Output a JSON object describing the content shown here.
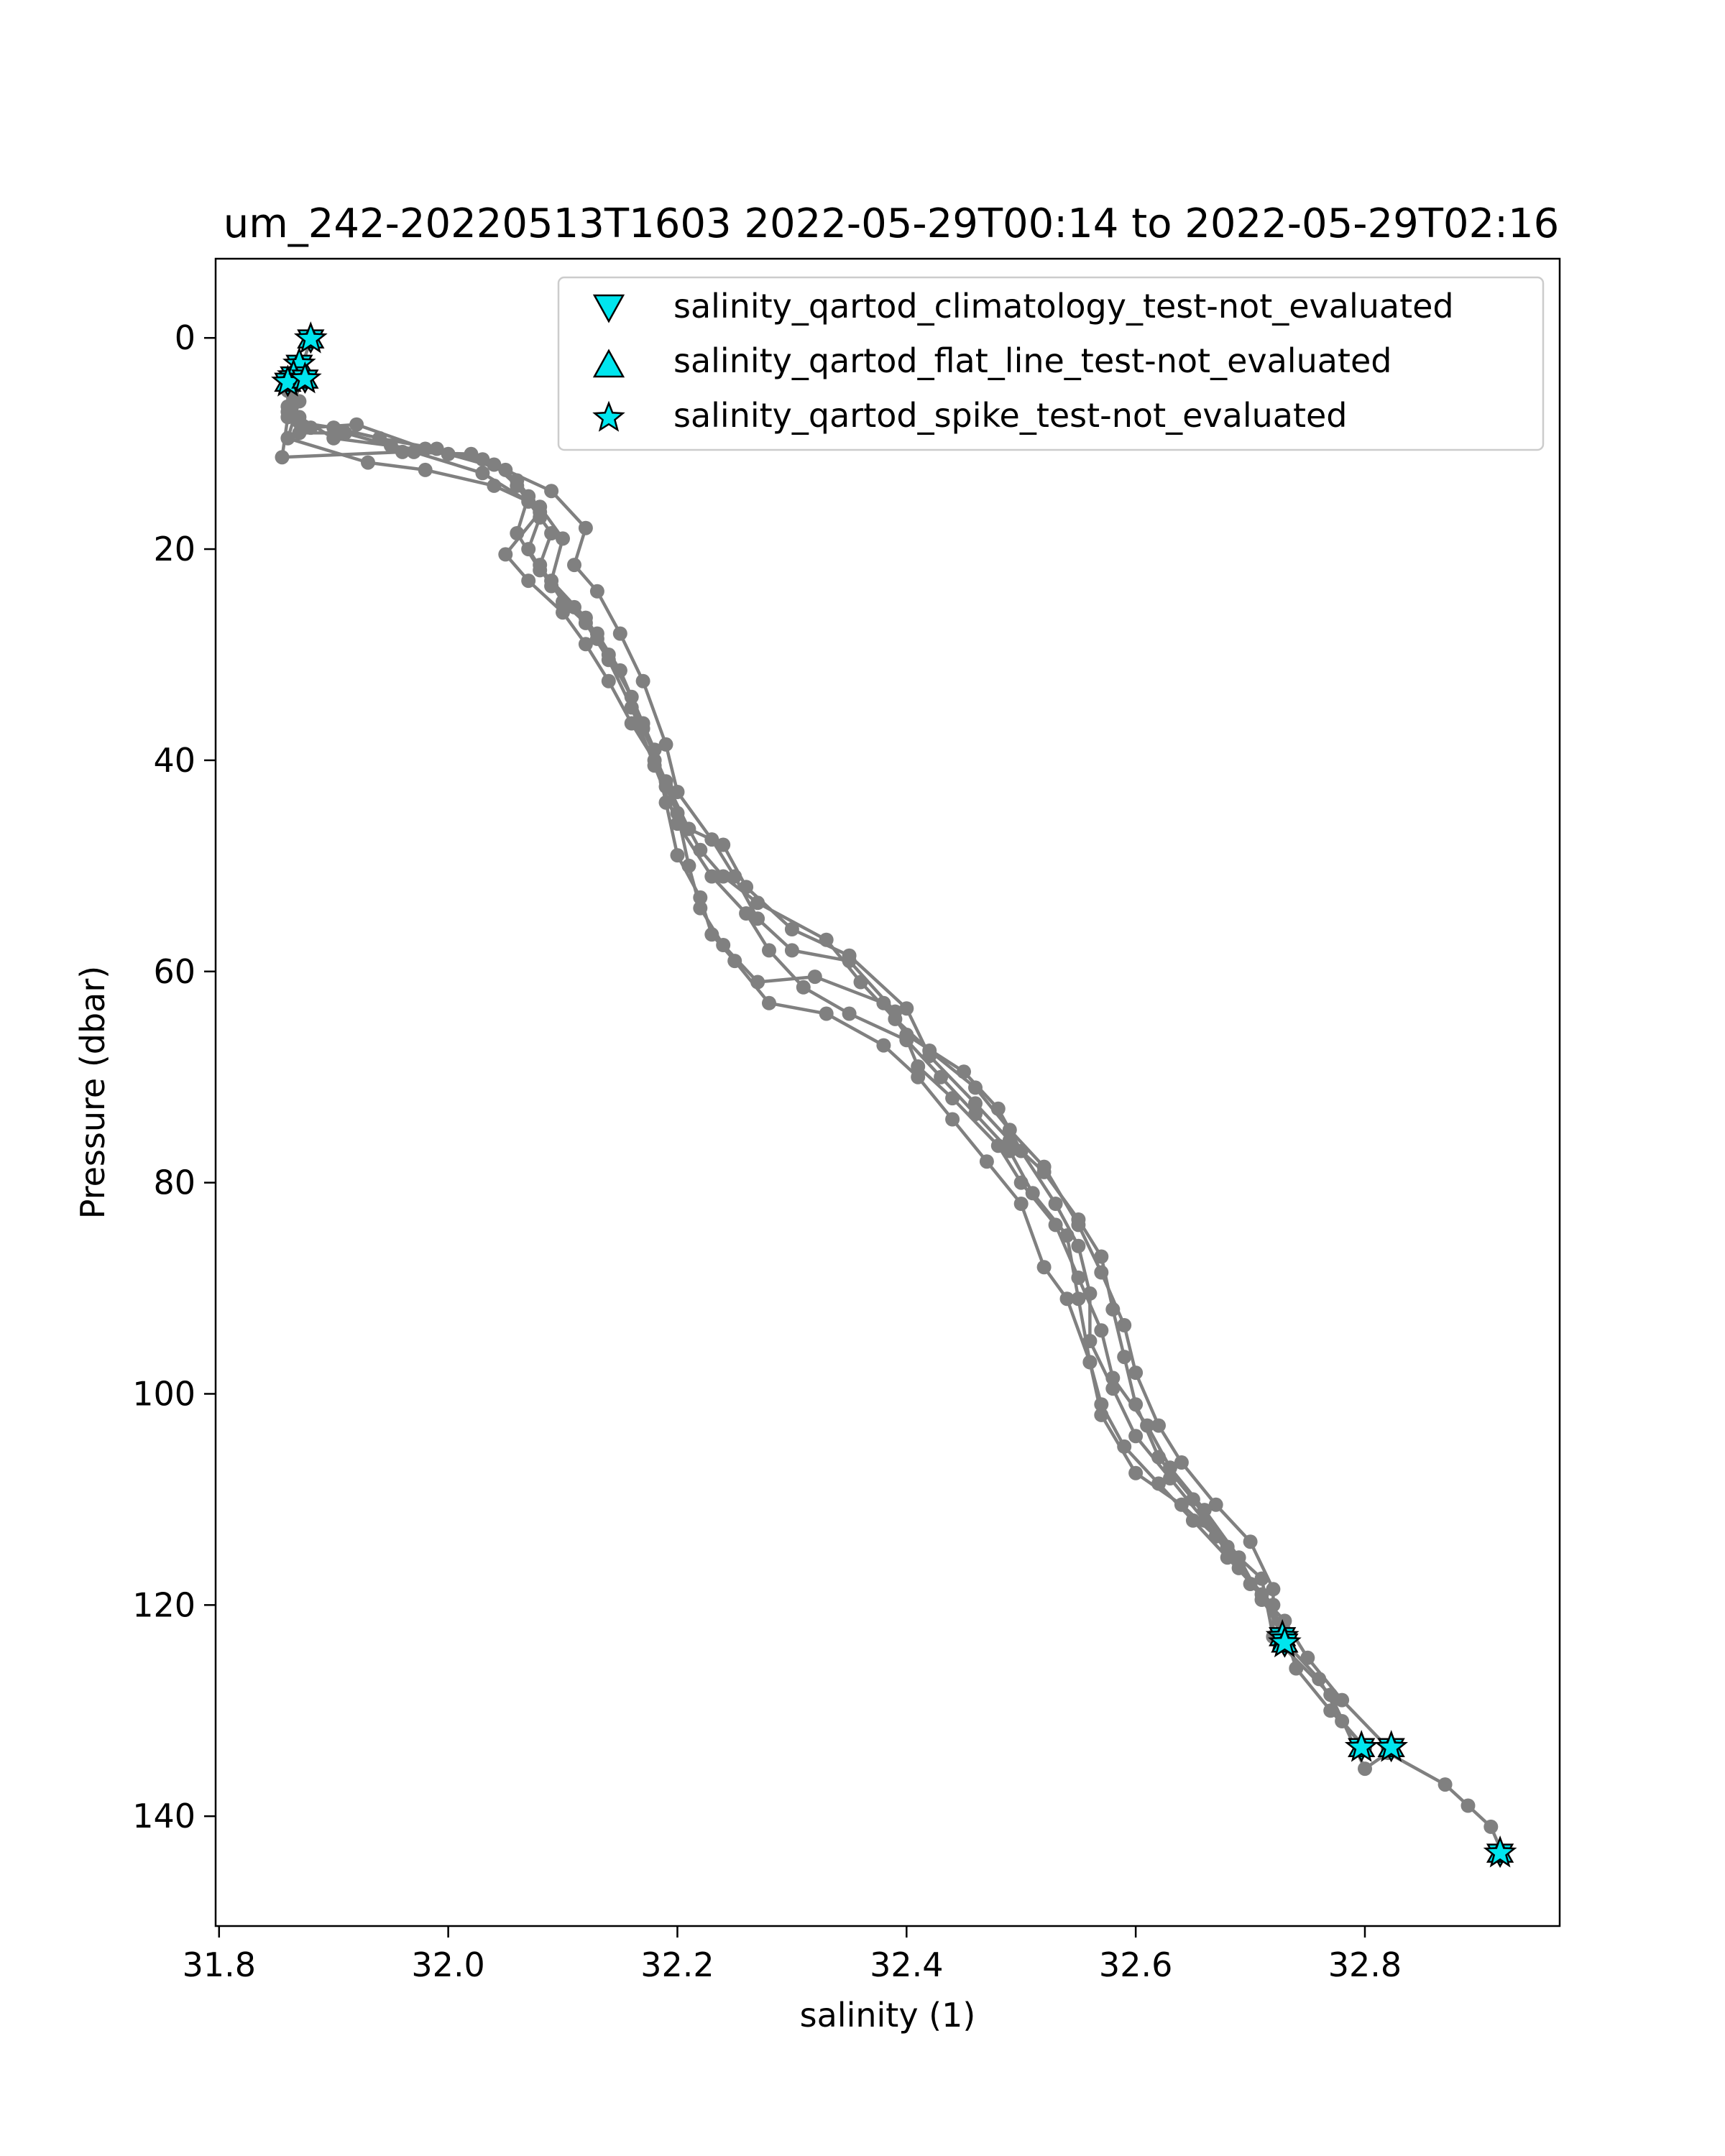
{
  "chart_data": {
    "type": "line",
    "title": "um_242-20220513T1603 2022-05-29T00:14 to 2022-05-29T02:16",
    "xlabel": "salinity (1)",
    "ylabel": "Pressure (dbar)",
    "xlim": [
      31.797,
      32.97
    ],
    "ylim": [
      150.4,
      -7.5
    ],
    "y_inverted": true,
    "grid": false,
    "legend_position": "top-right",
    "x_ticks": [
      31.8,
      32.0,
      32.2,
      32.4,
      32.6,
      32.8
    ],
    "x_tick_labels": [
      "31.8",
      "32.0",
      "32.2",
      "32.4",
      "32.6",
      "32.8"
    ],
    "y_ticks": [
      0,
      20,
      40,
      60,
      80,
      100,
      120,
      140
    ],
    "y_tick_labels": [
      "0",
      "20",
      "40",
      "60",
      "80",
      "100",
      "120",
      "140"
    ],
    "profile_color": "#808080",
    "marker_fill": "#00e5ee",
    "marker_edge": "#000000",
    "legend": [
      {
        "label": "salinity_qartod_climatology_test-not_evaluated",
        "marker": "triangle-down"
      },
      {
        "label": "salinity_qartod_flat_line_test-not_evaluated",
        "marker": "triangle-up"
      },
      {
        "label": "salinity_qartod_spike_test-not_evaluated",
        "marker": "star"
      }
    ],
    "series": [
      {
        "points": [
          [
            31.88,
            0.1
          ],
          [
            31.87,
            3.5
          ],
          [
            31.86,
            6.5
          ],
          [
            31.88,
            8.5
          ],
          [
            31.92,
            8.2
          ],
          [
            31.98,
            10.5
          ],
          [
            32.03,
            11.5
          ],
          [
            32.06,
            13.5
          ],
          [
            32.08,
            16.5
          ],
          [
            32.05,
            20.5
          ],
          [
            32.07,
            23
          ],
          [
            32.1,
            26
          ],
          [
            32.12,
            29
          ],
          [
            32.14,
            32.5
          ],
          [
            32.16,
            36.5
          ],
          [
            32.18,
            40
          ],
          [
            32.2,
            45
          ],
          [
            32.21,
            50
          ],
          [
            32.22,
            54
          ],
          [
            32.24,
            57.5
          ],
          [
            32.27,
            61
          ],
          [
            32.32,
            60.5
          ],
          [
            32.38,
            63
          ],
          [
            32.4,
            66
          ],
          [
            32.45,
            69.5
          ],
          [
            32.48,
            73
          ],
          [
            32.5,
            77
          ],
          [
            32.53,
            82
          ],
          [
            32.55,
            86
          ],
          [
            32.56,
            90.5
          ],
          [
            32.56,
            95
          ],
          [
            32.58,
            99.5
          ],
          [
            32.6,
            104
          ],
          [
            32.63,
            108
          ],
          [
            32.66,
            112
          ],
          [
            32.69,
            116.5
          ],
          [
            32.72,
            120
          ],
          [
            32.73,
            123.5
          ],
          [
            32.76,
            127
          ],
          [
            32.78,
            131
          ],
          [
            32.8,
            133.5
          ]
        ]
      },
      {
        "points": [
          [
            31.87,
            2.5
          ],
          [
            31.86,
            5
          ],
          [
            31.87,
            7.5
          ],
          [
            31.9,
            9.5
          ],
          [
            31.95,
            10.2
          ],
          [
            32.0,
            11
          ],
          [
            32.05,
            12.5
          ],
          [
            32.07,
            15
          ],
          [
            32.06,
            18.5
          ],
          [
            32.08,
            22
          ],
          [
            32.11,
            25.5
          ],
          [
            32.13,
            28.5
          ],
          [
            32.15,
            31.5
          ],
          [
            32.17,
            37
          ],
          [
            32.19,
            42
          ],
          [
            32.21,
            46.5
          ],
          [
            32.24,
            48
          ],
          [
            32.26,
            52
          ],
          [
            32.3,
            56
          ],
          [
            32.35,
            58.5
          ],
          [
            32.4,
            63.5
          ],
          [
            32.42,
            68
          ],
          [
            32.46,
            72.5
          ],
          [
            32.49,
            76
          ],
          [
            32.52,
            79
          ],
          [
            32.55,
            83.5
          ],
          [
            32.57,
            87
          ],
          [
            32.58,
            92
          ],
          [
            32.59,
            96.5
          ],
          [
            32.6,
            101
          ],
          [
            32.62,
            106
          ],
          [
            32.65,
            110
          ],
          [
            32.68,
            114.5
          ],
          [
            32.7,
            118
          ],
          [
            32.73,
            121.5
          ],
          [
            32.75,
            125
          ],
          [
            32.78,
            129
          ],
          [
            32.82,
            133.5
          ]
        ]
      },
      {
        "points": [
          [
            31.86,
            3.5
          ],
          [
            31.87,
            6
          ],
          [
            31.86,
            9.5
          ],
          [
            31.93,
            11.8
          ],
          [
            31.98,
            12.5
          ],
          [
            32.04,
            14
          ],
          [
            32.08,
            16
          ],
          [
            32.1,
            19
          ],
          [
            32.09,
            23
          ],
          [
            32.12,
            26.5
          ],
          [
            32.14,
            30
          ],
          [
            32.16,
            34
          ],
          [
            32.18,
            39
          ],
          [
            32.19,
            44
          ],
          [
            32.2,
            49
          ],
          [
            32.22,
            53
          ],
          [
            32.23,
            56.5
          ],
          [
            32.25,
            59
          ],
          [
            32.28,
            63
          ],
          [
            32.33,
            64
          ],
          [
            32.38,
            67
          ],
          [
            32.41,
            70
          ],
          [
            32.44,
            74
          ],
          [
            32.47,
            78
          ],
          [
            32.5,
            82
          ],
          [
            32.52,
            88
          ],
          [
            32.54,
            91
          ],
          [
            32.56,
            97
          ],
          [
            32.57,
            102
          ],
          [
            32.6,
            107.5
          ],
          [
            32.64,
            110.5
          ],
          [
            32.67,
            113.5
          ],
          [
            32.71,
            117.5
          ],
          [
            32.72,
            123
          ],
          [
            32.77,
            128.5
          ],
          [
            32.8,
            135.5
          ],
          [
            32.82,
            134
          ],
          [
            32.87,
            137
          ],
          [
            32.89,
            139
          ],
          [
            32.91,
            141
          ],
          [
            32.92,
            143.5
          ]
        ]
      },
      {
        "points": [
          [
            31.86,
            4
          ],
          [
            31.86,
            7.5
          ],
          [
            31.855,
            11.3
          ],
          [
            31.96,
            10.8
          ],
          [
            32.02,
            11
          ],
          [
            32.09,
            14.5
          ],
          [
            32.12,
            18
          ],
          [
            32.11,
            21.5
          ],
          [
            32.13,
            24
          ],
          [
            32.15,
            28
          ],
          [
            32.17,
            32.5
          ],
          [
            32.19,
            38.5
          ],
          [
            32.2,
            43
          ],
          [
            32.23,
            47.5
          ],
          [
            32.25,
            51
          ],
          [
            32.27,
            55
          ],
          [
            32.3,
            58
          ],
          [
            32.35,
            59
          ],
          [
            32.39,
            63.8
          ],
          [
            32.41,
            69
          ],
          [
            32.44,
            72
          ],
          [
            32.48,
            76.5
          ],
          [
            32.5,
            80
          ],
          [
            32.53,
            84
          ],
          [
            32.55,
            89
          ],
          [
            32.57,
            94
          ],
          [
            32.58,
            98.5
          ],
          [
            32.61,
            103
          ],
          [
            32.63,
            107
          ],
          [
            32.66,
            111
          ],
          [
            32.69,
            115.5
          ],
          [
            32.71,
            119.5
          ],
          [
            32.73,
            122.5
          ],
          [
            32.74,
            126
          ],
          [
            32.77,
            130
          ],
          [
            32.8,
            133.5
          ]
        ]
      },
      {
        "points": [
          [
            31.87,
            3.8
          ],
          [
            31.86,
            7
          ],
          [
            31.87,
            9
          ],
          [
            31.91,
            9
          ],
          [
            31.97,
            10.8
          ],
          [
            32.03,
            12.8
          ],
          [
            32.07,
            15.5
          ],
          [
            32.09,
            18.5
          ],
          [
            32.08,
            21.5
          ],
          [
            32.1,
            25
          ],
          [
            32.13,
            28
          ],
          [
            32.15,
            31.5
          ],
          [
            32.17,
            36.5
          ],
          [
            32.19,
            42.5
          ],
          [
            32.22,
            48.5
          ],
          [
            32.24,
            51
          ],
          [
            32.27,
            53.5
          ],
          [
            32.33,
            57
          ],
          [
            32.36,
            61
          ],
          [
            32.39,
            64.5
          ],
          [
            32.42,
            67.5
          ],
          [
            32.46,
            71
          ],
          [
            32.49,
            75
          ],
          [
            32.52,
            78.5
          ],
          [
            32.55,
            84
          ],
          [
            32.57,
            88.5
          ],
          [
            32.59,
            93.5
          ],
          [
            32.6,
            98
          ],
          [
            32.62,
            103
          ],
          [
            32.64,
            106.5
          ],
          [
            32.67,
            110.5
          ],
          [
            32.7,
            114
          ],
          [
            32.72,
            118.5
          ],
          [
            32.72,
            123
          ]
        ]
      },
      {
        "points": [
          [
            31.875,
            3.5
          ],
          [
            31.865,
            6
          ],
          [
            31.87,
            8
          ],
          [
            31.9,
            8.5
          ],
          [
            31.94,
            9.5
          ],
          [
            31.99,
            10.5
          ],
          [
            32.04,
            12
          ],
          [
            32.06,
            14
          ],
          [
            32.08,
            17
          ],
          [
            32.07,
            20
          ],
          [
            32.09,
            23.5
          ],
          [
            32.12,
            27
          ],
          [
            32.14,
            30.5
          ],
          [
            32.16,
            35
          ],
          [
            32.18,
            40.5
          ],
          [
            32.2,
            46
          ],
          [
            32.23,
            51
          ],
          [
            32.26,
            54.5
          ],
          [
            32.28,
            58
          ],
          [
            32.31,
            61.5
          ],
          [
            32.35,
            64
          ],
          [
            32.4,
            66.5
          ],
          [
            32.43,
            70
          ],
          [
            32.46,
            73.5
          ],
          [
            32.49,
            77
          ],
          [
            32.51,
            81
          ],
          [
            32.54,
            85
          ],
          [
            32.55,
            91
          ],
          [
            32.56,
            97
          ],
          [
            32.57,
            101
          ],
          [
            32.59,
            105
          ],
          [
            32.62,
            108.5
          ],
          [
            32.65,
            112
          ],
          [
            32.68,
            115.5
          ],
          [
            32.71,
            119
          ],
          [
            32.73,
            123.5
          ]
        ]
      }
    ],
    "flag_points": [
      [
        31.88,
        0.1
      ],
      [
        31.87,
        2.5
      ],
      [
        31.865,
        3.6
      ],
      [
        31.86,
        4.2
      ],
      [
        31.875,
        3.9
      ],
      [
        32.728,
        123
      ],
      [
        32.73,
        123.6
      ],
      [
        32.797,
        133.5
      ],
      [
        32.823,
        133.5
      ],
      [
        32.918,
        143.5
      ]
    ]
  }
}
